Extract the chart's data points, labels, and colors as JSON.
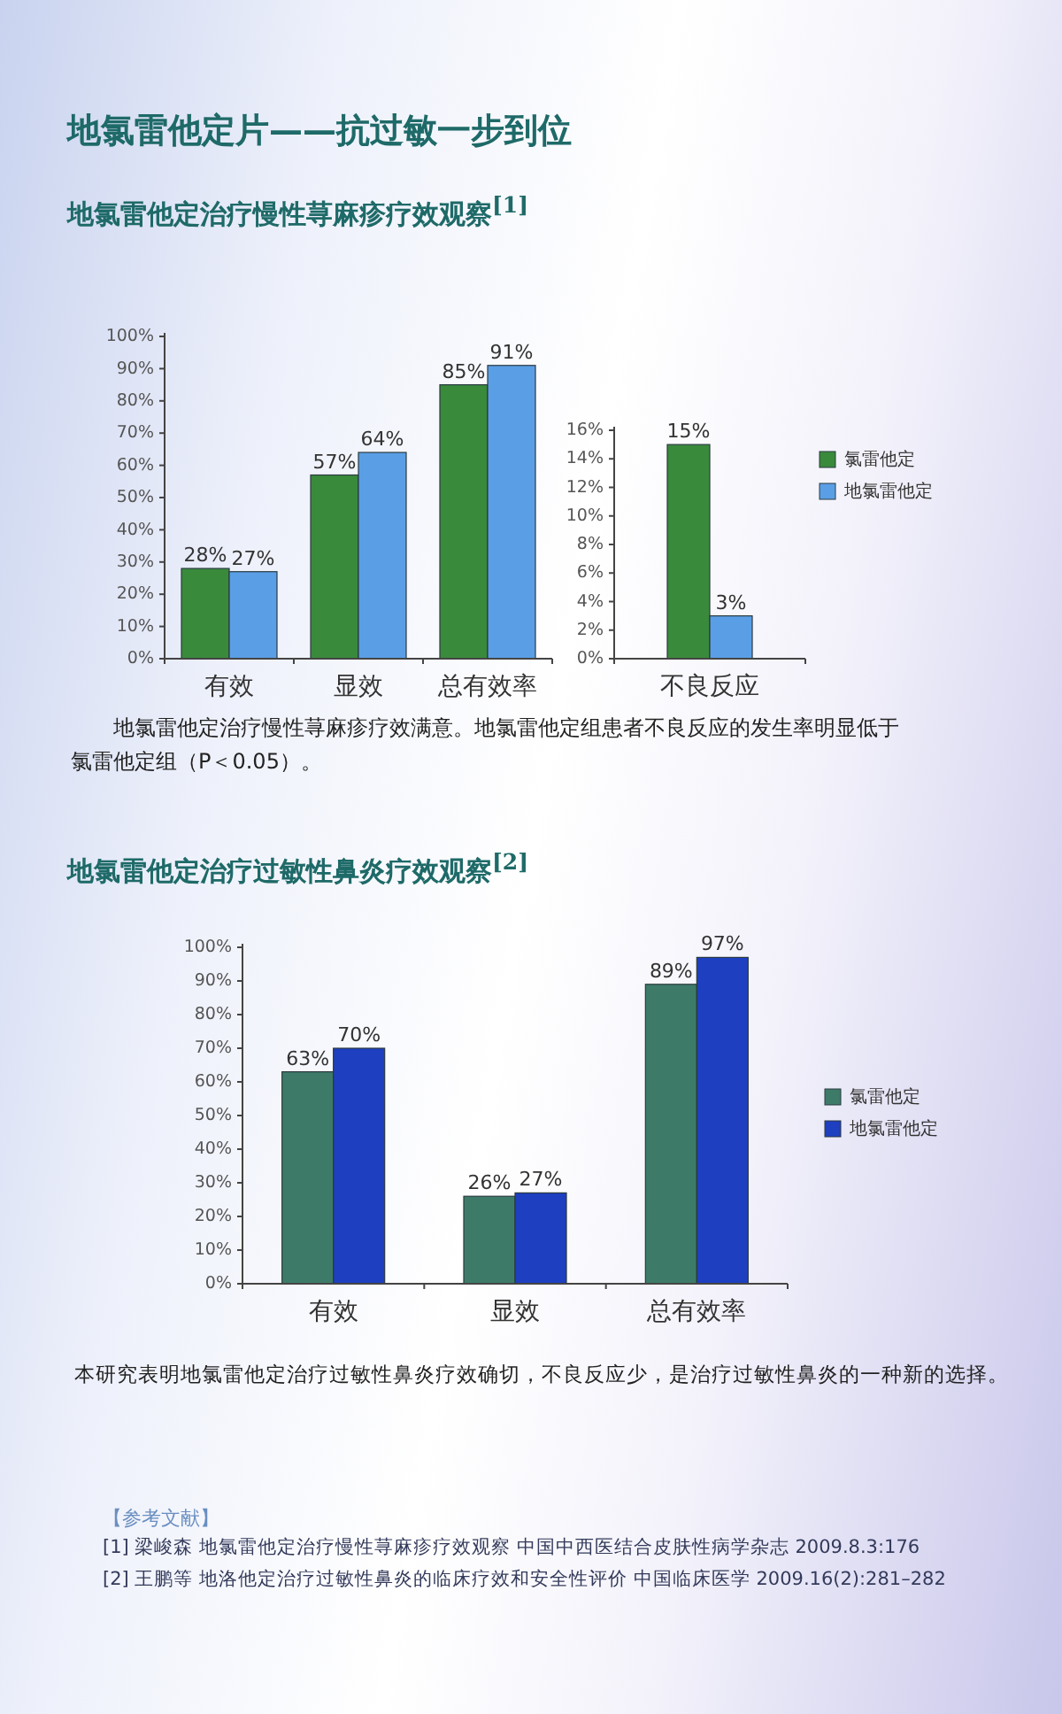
{
  "chart_data": [
    {
      "type": "bar",
      "title": "地氯雷他定片——抗过敏一步到位",
      "subtitle": "地氯雷他定治疗慢性荨麻疹疗效观察$^{[1]}$",
      "categories": [
        "有效",
        "显效",
        "总有效率"
      ],
      "series": [
        {
          "color": "#3a8a3c",
          "values": [
            28,
            57,
            85
          ],
          "value_labels": [
            "28%",
            "57%",
            "85%"
          ]
        },
        {
          "color": "#5a9fe6",
          "values": [
            27,
            64,
            91
          ],
          "value_labels": [
            "27%",
            "64%",
            "91%"
          ]
        }
      ],
      "ylim": [
        0,
        100
      ],
      "yticks": [
        {
          "value": 0,
          "label": "0%"
        },
        {
          "value": 10,
          "label": "10%"
        },
        {
          "value": 20,
          "label": "20%"
        },
        {
          "value": 30,
          "label": "30%"
        },
        {
          "value": 40,
          "label": "40%"
        },
        {
          "value": 50,
          "label": "50%"
        },
        {
          "value": 60,
          "label": "60%"
        },
        {
          "value": 70,
          "label": "70%"
        },
        {
          "value": 80,
          "label": "80%"
        },
        {
          "value": 90,
          "label": "90%"
        },
        {
          "value": 100,
          "label": "100%"
        }
      ],
      "annotations": [
        "地氯雷他定治疗慢性荨麻疹疗效满意。地氯雷他定组患者不良反应的发生率明显低于氯雷他定组（P＜0.05）。"
      ],
      "grid": false
    },
    {
      "type": "bar",
      "categories": [
        "不良反应"
      ],
      "series": [
        {
          "name": "氯雷他定",
          "color": "#3a8a3c",
          "values": [
            15
          ],
          "value_labels": [
            "15%"
          ]
        },
        {
          "name": "地氯雷他定",
          "color": "#5a9fe6",
          "values": [
            3
          ],
          "value_labels": [
            "3%"
          ]
        }
      ],
      "ylim": [
        0,
        16
      ],
      "yticks": [
        {
          "value": 0,
          "label": "0%"
        },
        {
          "value": 2,
          "label": "2%"
        },
        {
          "value": 4,
          "label": "4%"
        },
        {
          "value": 6,
          "label": "6%"
        },
        {
          "value": 8,
          "label": "8%"
        },
        {
          "value": 10,
          "label": "10%"
        },
        {
          "value": 12,
          "label": "12%"
        },
        {
          "value": 14,
          "label": "14%"
        },
        {
          "value": 16,
          "label": "16%"
        }
      ],
      "legend": "right",
      "grid": false
    },
    {
      "type": "bar",
      "title": "地氯雷他定治疗过敏性鼻炎疗效观察$^{[2]}$",
      "categories": [
        "有效",
        "显效",
        "总有效率"
      ],
      "series": [
        {
          "name": "氯雷他定",
          "color": "#3d7b68",
          "values": [
            63,
            26,
            89
          ],
          "value_labels": [
            "63%",
            "26%",
            "89%"
          ]
        },
        {
          "name": "地氯雷他定",
          "color": "#1e3fbf",
          "values": [
            70,
            27,
            97
          ],
          "value_labels": [
            "70%",
            "27%",
            "97%"
          ]
        }
      ],
      "ylim": [
        0,
        100
      ],
      "yticks": [
        {
          "value": 0,
          "label": "0%"
        },
        {
          "value": 10,
          "label": "10%"
        },
        {
          "value": 20,
          "label": "20%"
        },
        {
          "value": 30,
          "label": "30%"
        },
        {
          "value": 40,
          "label": "40%"
        },
        {
          "value": 50,
          "label": "50%"
        },
        {
          "value": 60,
          "label": "60%"
        },
        {
          "value": 70,
          "label": "70%"
        },
        {
          "value": 80,
          "label": "80%"
        },
        {
          "value": 90,
          "label": "90%"
        },
        {
          "value": 100,
          "label": "100%"
        }
      ],
      "annotations": [
        "本研究表明地氯雷他定治疗过敏性鼻炎疗效确切，不良反应少，是治疗过敏性鼻炎的一种新的选择。",
        "【参考文献】",
        "[1] 梁峻森 地氯雷他定治疗慢性荨麻疹疗效观察 中国中西医结合皮肤性病学杂志 2009.8.3:176",
        "[2] 王鹏等 地洛他定治疗过敏性鼻炎的临床疗效和安全性评价 中国临床医学 2009.16(2):281–282"
      ],
      "legend": "right",
      "grid": false
    }
  ]
}
